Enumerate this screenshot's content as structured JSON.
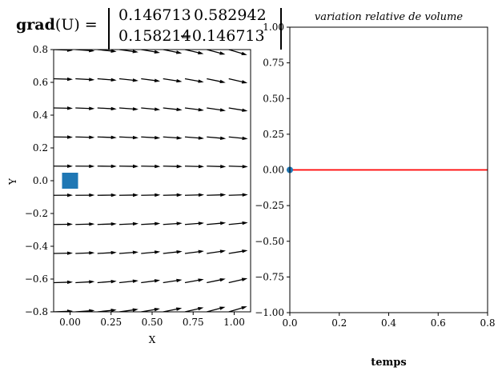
{
  "equation": {
    "lhs_bold": "grad",
    "lhs_rest": "(U) =",
    "matrix": [
      [
        "0.146713",
        "0.582942"
      ],
      [
        "0.158214",
        "−0.146713"
      ]
    ]
  },
  "chart_data": [
    {
      "type": "quiver",
      "xlabel": "X",
      "ylabel": "Y",
      "xlim": [
        -0.1,
        1.1
      ],
      "ylim": [
        -0.8,
        0.8
      ],
      "xticks": [
        "0.00",
        "0.25",
        "0.50",
        "0.75",
        "1.00"
      ],
      "xtick_values": [
        0,
        0.25,
        0.5,
        0.75,
        1.0
      ],
      "yticks": [
        "−0.8",
        "−0.6",
        "−0.4",
        "−0.2",
        "0.0",
        "0.2",
        "0.4",
        "0.6",
        "0.8"
      ],
      "ytick_values": [
        -0.8,
        -0.6,
        -0.4,
        -0.2,
        0,
        0.2,
        0.4,
        0.6,
        0.8
      ],
      "quiver_x": [
        -0.1,
        0.033,
        0.167,
        0.3,
        0.433,
        0.567,
        0.7,
        0.833,
        0.967,
        1.1
      ],
      "quiver_y": [
        0.8,
        0.622,
        0.444,
        0.267,
        0.089,
        -0.089,
        -0.267,
        -0.444,
        -0.622,
        -0.8
      ],
      "marker": {
        "x": 0,
        "y": 0,
        "shape": "square",
        "color": "#1f77b4"
      },
      "grid": false
    },
    {
      "type": "line",
      "title": "variation relative de volume",
      "xlabel": "temps",
      "xlim": [
        0,
        0.8
      ],
      "ylim": [
        -1,
        1
      ],
      "xticks": [
        "0.0",
        "0.2",
        "0.4",
        "0.6",
        "0.8"
      ],
      "xtick_values": [
        0,
        0.2,
        0.4,
        0.6,
        0.8
      ],
      "yticks": [
        "−1.00",
        "−0.75",
        "−0.50",
        "−0.25",
        "0.00",
        "0.25",
        "0.50",
        "0.75",
        "1.00"
      ],
      "ytick_values": [
        -1,
        -0.75,
        -0.5,
        -0.25,
        0,
        0.25,
        0.5,
        0.75,
        1
      ],
      "series": [
        {
          "x": [
            0,
            0.8
          ],
          "y": [
            0,
            0
          ],
          "color": "#ff0000"
        }
      ],
      "point": {
        "x": 0,
        "y": 0,
        "color": "#1f77b4"
      },
      "grid": false
    }
  ]
}
